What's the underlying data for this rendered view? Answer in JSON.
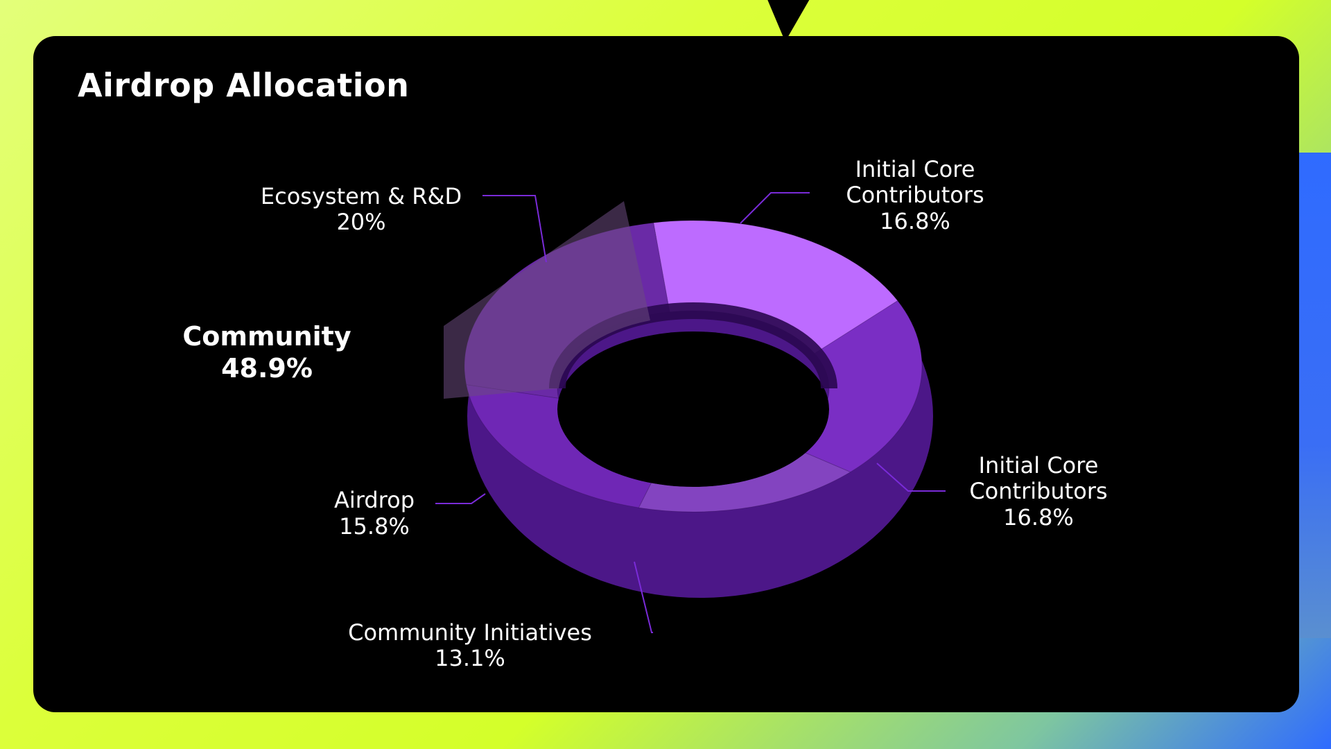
{
  "page": {
    "title": "Airdrop Allocation"
  },
  "chart_data": {
    "type": "pie",
    "title": "Airdrop Allocation",
    "donut": true,
    "three_d": true,
    "categories": [
      "Initial Core Contributors",
      "Initial Core Contributors",
      "Community Initiatives",
      "Airdrop",
      "Ecosystem & R&D"
    ],
    "values": [
      16.8,
      16.8,
      13.1,
      15.8,
      20
    ],
    "group_label": {
      "name": "Community",
      "value": "48.9%"
    },
    "slices": [
      {
        "line1": "Initial Core",
        "line2": "Contributors",
        "pct": "16.8%",
        "color": "#bd6bff"
      },
      {
        "line1": "Initial Core",
        "line2": "Contributors",
        "pct": "16.8%",
        "color": "#7a2ec4"
      },
      {
        "line1": "Community Initiatives",
        "line2": "",
        "pct": "13.1%",
        "color": "#8344c0"
      },
      {
        "line1": "Airdrop",
        "line2": "",
        "pct": "15.8%",
        "color": "#6f27b5"
      },
      {
        "line1": "Ecosystem & R&D",
        "line2": "",
        "pct": "20%",
        "color": "#6a2aa6"
      }
    ]
  }
}
